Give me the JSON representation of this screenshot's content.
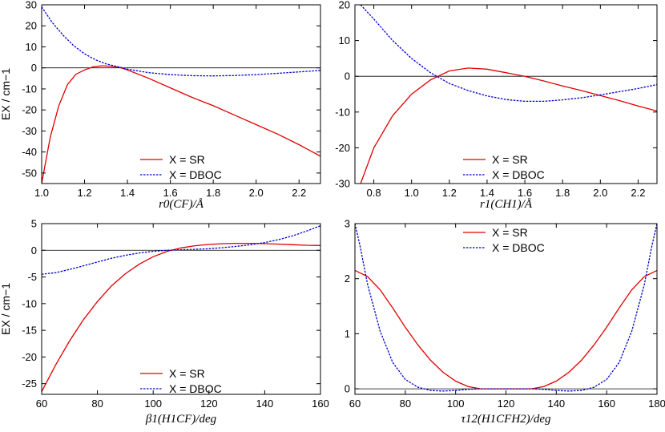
{
  "chart_data": [
    {
      "type": "line",
      "xlabel": "r0(CF)/Å",
      "ylabel": "EX / cm−1",
      "xlim": [
        1.0,
        2.3
      ],
      "ylim": [
        -55,
        30
      ],
      "xticks": [
        "1.0",
        "1.2",
        "1.4",
        "1.6",
        "1.8",
        "2.0",
        "2.2"
      ],
      "yticks": [
        "30",
        "20",
        "10",
        "0",
        "-10",
        "-20",
        "-30",
        "-40",
        "-50"
      ],
      "legend": [
        "X = SR",
        "X = DBOC"
      ],
      "series": [
        {
          "name": "X = SR",
          "color": "#e00000",
          "x": [
            1.0,
            1.04,
            1.08,
            1.12,
            1.16,
            1.2,
            1.24,
            1.28,
            1.32,
            1.36,
            1.4,
            1.5,
            1.6,
            1.7,
            1.8,
            1.9,
            2.0,
            2.1,
            2.2,
            2.3
          ],
          "y": [
            -55,
            -33,
            -18,
            -8,
            -3,
            -1,
            0.5,
            1,
            0.8,
            0.3,
            -1,
            -5,
            -9.5,
            -14,
            -18,
            -22.5,
            -27,
            -31.5,
            -36.5,
            -42
          ]
        },
        {
          "name": "X = DBOC",
          "color": "#0000cc",
          "x": [
            1.0,
            1.05,
            1.1,
            1.15,
            1.2,
            1.25,
            1.3,
            1.35,
            1.4,
            1.5,
            1.6,
            1.7,
            1.8,
            1.9,
            2.0,
            2.1,
            2.2,
            2.3
          ],
          "y": [
            29,
            21.5,
            15.5,
            10.5,
            6.7,
            3.9,
            1.9,
            0.7,
            -0.6,
            -2.3,
            -3.2,
            -3.7,
            -3.8,
            -3.6,
            -3.2,
            -2.6,
            -1.9,
            -1.2
          ]
        }
      ]
    },
    {
      "type": "line",
      "xlabel": "r1(CH1)/Å",
      "ylabel": "",
      "xlim": [
        0.7,
        2.3
      ],
      "ylim": [
        -30,
        20
      ],
      "xticks": [
        "0.8",
        "1.0",
        "1.2",
        "1.4",
        "1.6",
        "1.8",
        "2.0",
        "2.2"
      ],
      "yticks": [
        "20",
        "10",
        "0",
        "-10",
        "-20",
        "-30"
      ],
      "legend": [
        "X = SR",
        "X = DBOC"
      ],
      "series": [
        {
          "name": "X = SR",
          "color": "#e00000",
          "x": [
            0.73,
            0.8,
            0.9,
            1.0,
            1.1,
            1.2,
            1.3,
            1.4,
            1.5,
            1.6,
            1.7,
            1.8,
            1.9,
            2.0,
            2.1,
            2.2,
            2.3
          ],
          "y": [
            -30,
            -20,
            -11,
            -5,
            -1,
            1.5,
            2.3,
            2,
            1,
            0,
            -1.3,
            -2.7,
            -4,
            -5.4,
            -6.8,
            -8.3,
            -9.7
          ]
        },
        {
          "name": "X = DBOC",
          "color": "#0000cc",
          "x": [
            0.73,
            0.8,
            0.9,
            1.0,
            1.1,
            1.2,
            1.3,
            1.4,
            1.5,
            1.6,
            1.7,
            1.8,
            1.9,
            2.0,
            2.1,
            2.2,
            2.3
          ],
          "y": [
            20,
            16,
            10,
            5,
            1,
            -2,
            -4,
            -5.5,
            -6.5,
            -7,
            -7,
            -6.6,
            -6,
            -5.2,
            -4.3,
            -3.4,
            -2.3
          ]
        }
      ]
    },
    {
      "type": "line",
      "xlabel": "β1(H1CF)/deg",
      "ylabel": "EX / cm−1",
      "xlim": [
        60,
        160
      ],
      "ylim": [
        -27,
        5
      ],
      "xticks": [
        "60",
        "80",
        "100",
        "120",
        "140",
        "160"
      ],
      "yticks": [
        "5",
        "0",
        "-5",
        "-10",
        "-15",
        "-20",
        "-25"
      ],
      "legend": [
        "X = SR",
        "X = DBOC"
      ],
      "series": [
        {
          "name": "X = SR",
          "color": "#e00000",
          "x": [
            60,
            65,
            70,
            75,
            80,
            85,
            90,
            95,
            100,
            105,
            110,
            115,
            120,
            125,
            130,
            135,
            140,
            145,
            150,
            155,
            160
          ],
          "y": [
            -26.5,
            -21.5,
            -17,
            -13,
            -9.6,
            -6.7,
            -4.4,
            -2.6,
            -1.2,
            -0.2,
            0.45,
            0.85,
            1.1,
            1.25,
            1.3,
            1.3,
            1.25,
            1.15,
            1.05,
            0.95,
            0.9
          ]
        },
        {
          "name": "X = DBOC",
          "color": "#0000cc",
          "x": [
            60,
            65,
            70,
            75,
            80,
            85,
            90,
            95,
            100,
            105,
            110,
            115,
            120,
            125,
            130,
            135,
            140,
            145,
            150,
            155,
            160
          ],
          "y": [
            -4.5,
            -4.2,
            -3.6,
            -2.9,
            -2.2,
            -1.5,
            -0.95,
            -0.5,
            -0.2,
            0,
            0.1,
            0.2,
            0.3,
            0.5,
            0.75,
            1.05,
            1.45,
            2,
            2.7,
            3.6,
            4.6
          ]
        }
      ]
    },
    {
      "type": "line",
      "xlabel": "τ12(H1CFH2)/deg",
      "ylabel": "",
      "xlim": [
        60,
        180
      ],
      "ylim": [
        -0.1,
        3
      ],
      "xticks": [
        "60",
        "80",
        "100",
        "120",
        "140",
        "160",
        "180"
      ],
      "yticks": [
        "3",
        "2",
        "1",
        "0"
      ],
      "legend": [
        "X = SR",
        "X = DBOC"
      ],
      "series": [
        {
          "name": "X = SR",
          "color": "#e00000",
          "x": [
            60,
            65,
            70,
            75,
            80,
            85,
            90,
            95,
            100,
            105,
            110,
            115,
            120,
            125,
            130,
            135,
            140,
            145,
            150,
            155,
            160,
            165,
            170,
            175,
            180
          ],
          "y": [
            2.15,
            2.04,
            1.8,
            1.47,
            1.12,
            0.8,
            0.52,
            0.3,
            0.14,
            0.04,
            0,
            0,
            0,
            0,
            0,
            0.04,
            0.14,
            0.3,
            0.52,
            0.8,
            1.12,
            1.47,
            1.8,
            2.04,
            2.15
          ]
        },
        {
          "name": "X = DBOC",
          "color": "#0000cc",
          "x": [
            60,
            62,
            65,
            70,
            75,
            80,
            85,
            90,
            95,
            100,
            105,
            110,
            115,
            120,
            125,
            130,
            135,
            140,
            145,
            150,
            155,
            160,
            165,
            170,
            175,
            178,
            180
          ],
          "y": [
            3,
            2.6,
            1.9,
            1.05,
            0.48,
            0.17,
            0.03,
            -0.03,
            -0.04,
            -0.03,
            -0.01,
            0,
            0,
            0,
            0,
            0,
            -0.01,
            -0.03,
            -0.04,
            -0.03,
            0.03,
            0.17,
            0.48,
            1.05,
            1.9,
            2.6,
            3
          ]
        }
      ]
    }
  ]
}
